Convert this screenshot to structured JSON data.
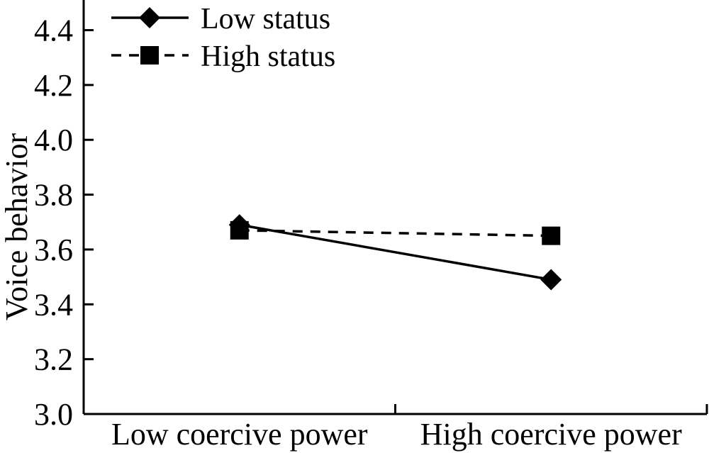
{
  "figure": {
    "background_color": "#ffffff",
    "ink_color": "#000000"
  },
  "chart_data": {
    "type": "line",
    "title": "",
    "xlabel": "",
    "ylabel": "Voice behavior",
    "categories": [
      "Low coercive power",
      "High coercive power"
    ],
    "series": [
      {
        "name": "Low status",
        "values": [
          3.69,
          3.49
        ],
        "line_style": "solid",
        "marker": "diamond"
      },
      {
        "name": "High status",
        "values": [
          3.67,
          3.65
        ],
        "line_style": "dashed",
        "marker": "square"
      }
    ],
    "ylim": [
      3.0,
      4.51
    ],
    "yticks": [
      3.0,
      3.2,
      3.4,
      3.6,
      3.8,
      4.0,
      4.2,
      4.4
    ],
    "ytick_labels": [
      "3.0",
      "3.2",
      "3.4",
      "3.6",
      "3.8",
      "4.0",
      "4.2",
      "4.4"
    ],
    "grid": false,
    "legend_position": "top-left",
    "tick_direction": "in"
  }
}
